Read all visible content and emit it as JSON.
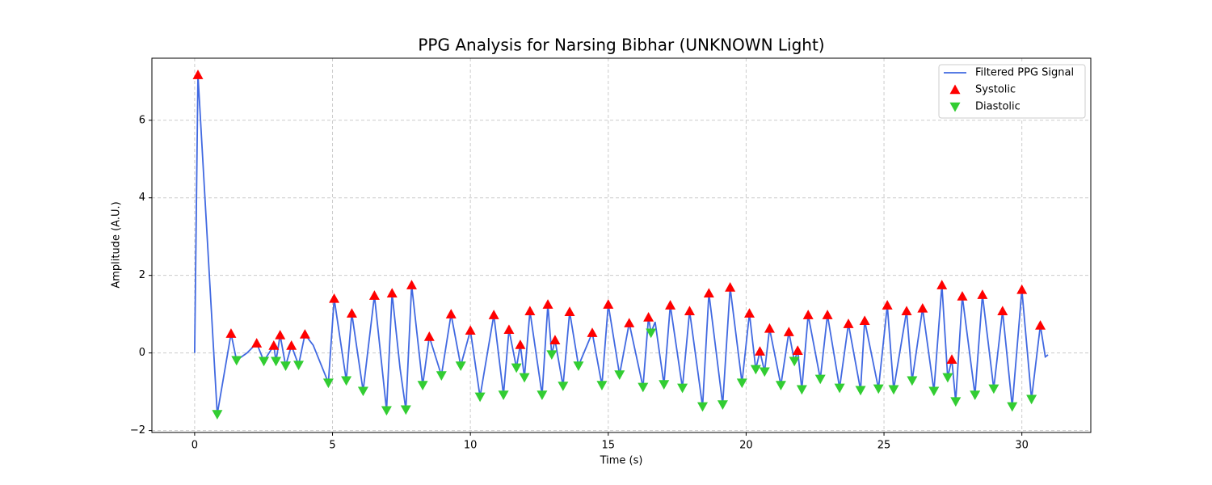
{
  "chart_data": {
    "type": "line",
    "title": "PPG Analysis for Narsing Bibhar (UNKNOWN Light)",
    "x_label": "Time (s)",
    "y_label": "Amplitude (A.U.)",
    "xlim": [
      -1.55,
      32.5
    ],
    "ylim": [
      -2.05,
      7.6
    ],
    "xticks": [
      0,
      5,
      10,
      15,
      20,
      25,
      30
    ],
    "yticks": [
      {
        "value": -2,
        "label": "−2"
      },
      0,
      2,
      4,
      6
    ],
    "grid": true,
    "legend": "upper right",
    "series": [
      {
        "name": "Filtered PPG Signal",
        "color": "#4169e1",
        "marker": "line",
        "x": [
          0,
          0.12,
          0.82,
          1.32,
          1.52,
          1.9,
          2.25,
          2.51,
          2.87,
          2.95,
          3.1,
          3.3,
          3.51,
          3.77,
          4.0,
          4.3,
          4.85,
          5.06,
          5.5,
          5.7,
          6.11,
          6.52,
          6.96,
          7.16,
          7.45,
          7.66,
          7.87,
          8.27,
          8.51,
          8.95,
          9.3,
          9.65,
          10.0,
          10.35,
          10.85,
          11.2,
          11.4,
          11.67,
          11.81,
          11.96,
          12.16,
          12.6,
          12.81,
          12.95,
          13.07,
          13.36,
          13.6,
          13.92,
          14.42,
          14.77,
          15.0,
          15.41,
          15.76,
          16.26,
          16.46,
          16.55,
          16.7,
          17.02,
          17.25,
          17.69,
          17.95,
          18.42,
          18.65,
          19.15,
          19.42,
          19.85,
          20.12,
          20.35,
          20.5,
          20.67,
          20.85,
          21.26,
          21.55,
          21.75,
          21.87,
          22.02,
          22.25,
          22.69,
          22.95,
          23.39,
          23.71,
          24.15,
          24.3,
          24.8,
          25.12,
          25.35,
          25.82,
          26.02,
          26.4,
          26.81,
          27.1,
          27.31,
          27.46,
          27.6,
          27.84,
          28.3,
          28.57,
          28.98,
          29.3,
          29.65,
          30.0,
          30.35,
          30.67,
          30.85,
          30.95
        ],
        "values": [
          0,
          7.17,
          -1.58,
          0.5,
          -0.19,
          0.0,
          0.25,
          -0.21,
          0.19,
          -0.21,
          0.46,
          -0.33,
          0.19,
          -0.31,
          0.48,
          0.2,
          -0.77,
          1.4,
          -0.71,
          1.02,
          -0.98,
          1.48,
          -1.48,
          1.54,
          -0.4,
          -1.46,
          1.75,
          -0.83,
          0.42,
          -0.58,
          1.0,
          -0.33,
          0.58,
          -1.13,
          0.98,
          -1.08,
          0.6,
          -0.38,
          0.21,
          -0.63,
          1.08,
          -1.08,
          1.25,
          -0.04,
          0.33,
          -0.85,
          1.06,
          -0.33,
          0.52,
          -0.83,
          1.25,
          -0.56,
          0.77,
          -0.88,
          0.92,
          0.52,
          0.8,
          -0.81,
          1.23,
          -0.9,
          1.08,
          -1.38,
          1.54,
          -1.33,
          1.69,
          -0.77,
          1.02,
          -0.42,
          0.04,
          -0.48,
          0.63,
          -0.83,
          0.54,
          -0.21,
          0.06,
          -0.94,
          0.98,
          -0.67,
          0.98,
          -0.9,
          0.75,
          -0.96,
          0.83,
          -0.92,
          1.23,
          -0.94,
          1.08,
          -0.71,
          1.15,
          -0.98,
          1.75,
          -0.63,
          -0.17,
          -1.25,
          1.46,
          -1.08,
          1.5,
          -0.92,
          1.08,
          -1.38,
          1.63,
          -1.19,
          0.71,
          -0.1,
          -0.05
        ]
      },
      {
        "name": "Systolic",
        "color": "#ff0000",
        "marker": "triangle-up",
        "x": [
          0.12,
          1.32,
          2.25,
          2.87,
          3.1,
          3.51,
          4.0,
          5.06,
          5.7,
          6.52,
          7.16,
          7.87,
          8.51,
          9.3,
          10.0,
          10.85,
          11.4,
          11.81,
          12.16,
          12.81,
          13.07,
          13.6,
          14.42,
          15.0,
          15.76,
          16.46,
          17.25,
          17.95,
          18.65,
          19.42,
          20.12,
          20.5,
          20.85,
          21.55,
          21.87,
          22.25,
          22.95,
          23.71,
          24.3,
          25.12,
          25.82,
          26.4,
          27.1,
          27.46,
          27.84,
          28.57,
          29.3,
          30.0,
          30.67
        ],
        "values": [
          7.17,
          0.5,
          0.25,
          0.19,
          0.46,
          0.19,
          0.48,
          1.4,
          1.02,
          1.48,
          1.54,
          1.75,
          0.42,
          1.0,
          0.58,
          0.98,
          0.6,
          0.21,
          1.08,
          1.25,
          0.33,
          1.06,
          0.52,
          1.25,
          0.77,
          0.92,
          1.23,
          1.08,
          1.54,
          1.69,
          1.02,
          0.04,
          0.63,
          0.54,
          0.06,
          0.98,
          0.98,
          0.75,
          0.83,
          1.23,
          1.08,
          1.15,
          1.75,
          -0.17,
          1.46,
          1.5,
          1.08,
          1.63,
          0.71
        ]
      },
      {
        "name": "Diastolic",
        "color": "#32cd32",
        "marker": "triangle-down",
        "x": [
          0.82,
          1.52,
          2.51,
          2.95,
          3.3,
          3.77,
          4.85,
          5.5,
          6.11,
          6.96,
          7.66,
          8.27,
          8.95,
          9.65,
          10.35,
          11.2,
          11.67,
          11.96,
          12.6,
          12.95,
          13.36,
          13.92,
          14.77,
          15.41,
          16.26,
          16.55,
          17.02,
          17.69,
          18.42,
          19.15,
          19.85,
          20.35,
          20.67,
          21.26,
          21.75,
          22.02,
          22.69,
          23.39,
          24.15,
          24.8,
          25.35,
          26.02,
          26.81,
          27.31,
          27.6,
          28.3,
          28.98,
          29.65,
          30.35
        ],
        "values": [
          -1.58,
          -0.19,
          -0.21,
          -0.21,
          -0.33,
          -0.31,
          -0.77,
          -0.71,
          -0.98,
          -1.48,
          -1.46,
          -0.83,
          -0.58,
          -0.33,
          -1.13,
          -1.08,
          -0.38,
          -0.63,
          -1.08,
          -0.04,
          -0.85,
          -0.33,
          -0.83,
          -0.56,
          -0.88,
          0.52,
          -0.81,
          -0.9,
          -1.38,
          -1.33,
          -0.77,
          -0.42,
          -0.48,
          -0.83,
          -0.21,
          -0.94,
          -0.67,
          -0.9,
          -0.96,
          -0.92,
          -0.94,
          -0.71,
          -0.98,
          -0.63,
          -1.25,
          -1.08,
          -0.92,
          -1.38,
          -1.19
        ]
      }
    ]
  }
}
